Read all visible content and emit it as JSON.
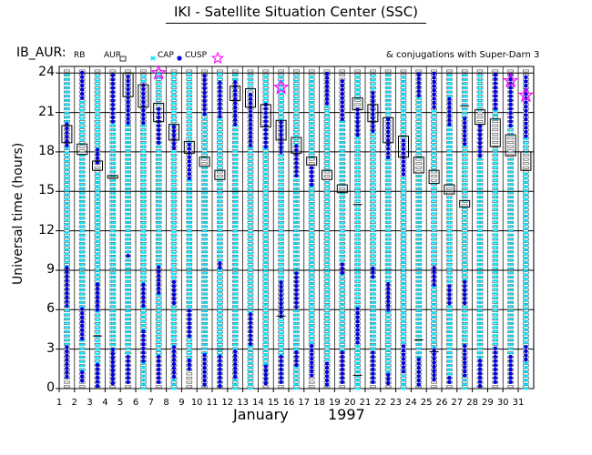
{
  "title": "IKI - Satellite Situation Center (SSC)",
  "panel_label": "IB_AUR:",
  "legend": [
    {
      "label": "RB",
      "marker": "none",
      "color": "#000000"
    },
    {
      "label": "AUR",
      "marker": "open-square",
      "color": "#000000"
    },
    {
      "label": "CAP",
      "marker": "asterisk",
      "color": "#00e5ff"
    },
    {
      "label": "CUSP",
      "marker": "filled-circle",
      "color": "#0000dd"
    },
    {
      "label": "",
      "marker": "open-star",
      "color": "#ff00ff"
    }
  ],
  "conjugation_note": "& conjugations with Super-Darn 3",
  "chart_data": {
    "type": "scatter",
    "title": "IKI - Satellite Situation Center (SSC)",
    "ylabel": "Universal time (hours)",
    "xlabel_month": "January",
    "xlabel_year": "1997",
    "ylim": [
      0,
      24.5
    ],
    "yticks": [
      0,
      3,
      6,
      9,
      12,
      15,
      18,
      21,
      24
    ],
    "xticks": [
      1,
      2,
      3,
      4,
      5,
      6,
      7,
      8,
      9,
      10,
      11,
      12,
      13,
      14,
      15,
      16,
      17,
      18,
      19,
      20,
      21,
      22,
      23,
      24,
      25,
      26,
      27,
      28,
      29,
      30,
      31
    ],
    "colors": {
      "AUR": "#404040",
      "CAP": "#00e5ff",
      "CUSP": "#0000dd",
      "conjugation": "#ff00ff"
    },
    "days": [
      2,
      3,
      4,
      5,
      6,
      7,
      8,
      9,
      10,
      11,
      12,
      13,
      14,
      15,
      16,
      17,
      18,
      19,
      20,
      21,
      22,
      23,
      24,
      25,
      26,
      27,
      28,
      29,
      30,
      31,
      32
    ],
    "rb_boxes": [
      {
        "day": 2,
        "start": 18.7,
        "end": 20.0
      },
      {
        "day": 3,
        "start": 17.8,
        "end": 18.6
      },
      {
        "day": 4,
        "start": 16.6,
        "end": 17.3
      },
      {
        "day": 5,
        "start": 16.0,
        "end": 16.2
      },
      {
        "day": 6,
        "start": 22.2,
        "end": 24.0
      },
      {
        "day": 7,
        "start": 21.4,
        "end": 23.1
      },
      {
        "day": 8,
        "start": 20.3,
        "end": 21.7
      },
      {
        "day": 9,
        "start": 18.9,
        "end": 20.1
      },
      {
        "day": 10,
        "start": 17.9,
        "end": 18.8
      },
      {
        "day": 11,
        "start": 16.9,
        "end": 17.6
      },
      {
        "day": 12,
        "start": 15.9,
        "end": 16.6
      },
      {
        "day": 13,
        "start": 21.9,
        "end": 23.0
      },
      {
        "day": 14,
        "start": 21.4,
        "end": 22.8
      },
      {
        "day": 15,
        "start": 19.9,
        "end": 21.6
      },
      {
        "day": 16,
        "start": 18.9,
        "end": 20.4
      },
      {
        "day": 17,
        "start": 17.9,
        "end": 19.1
      },
      {
        "day": 18,
        "start": 17.0,
        "end": 17.6
      },
      {
        "day": 19,
        "start": 15.9,
        "end": 16.6
      },
      {
        "day": 20,
        "start": 14.9,
        "end": 15.5
      },
      {
        "day": 21,
        "start": 21.2,
        "end": 22.1
      },
      {
        "day": 22,
        "start": 20.3,
        "end": 21.6
      },
      {
        "day": 23,
        "start": 18.7,
        "end": 20.6
      },
      {
        "day": 24,
        "start": 17.6,
        "end": 19.2
      },
      {
        "day": 25,
        "start": 16.4,
        "end": 17.6
      },
      {
        "day": 26,
        "start": 15.6,
        "end": 16.6
      },
      {
        "day": 27,
        "start": 14.8,
        "end": 15.5
      },
      {
        "day": 28,
        "start": 13.8,
        "end": 14.3
      },
      {
        "day": 29,
        "start": 20.1,
        "end": 21.2
      },
      {
        "day": 30,
        "start": 18.4,
        "end": 20.5
      },
      {
        "day": 31,
        "start": 17.7,
        "end": 19.3
      },
      {
        "day": 32,
        "start": 16.6,
        "end": 18.0
      }
    ],
    "rb_ticks": [
      {
        "day": 4,
        "t": 4.0
      },
      {
        "day": 12,
        "t": 3.0
      },
      {
        "day": 13,
        "t": 15.0
      },
      {
        "day": 16,
        "t": 5.5
      },
      {
        "day": 21,
        "t": 1.0
      },
      {
        "day": 21,
        "t": 14.0
      },
      {
        "day": 25,
        "t": 3.7
      },
      {
        "day": 26,
        "t": 2.8
      },
      {
        "day": 28,
        "t": 21.5
      }
    ],
    "conjugations": [
      {
        "day": 8,
        "t": 24.0
      },
      {
        "day": 16,
        "t": 22.9
      },
      {
        "day": 31,
        "t": 23.4
      },
      {
        "day": 32,
        "t": 22.3
      }
    ],
    "cusp_segments": [
      {
        "day": 2,
        "ranges": [
          [
            0.9,
            3.4
          ],
          [
            6.3,
            9.3
          ],
          [
            18.5,
            20.3
          ]
        ]
      },
      {
        "day": 3,
        "ranges": [
          [
            0.6,
            1.4
          ],
          [
            3.8,
            6.2
          ],
          [
            22.1,
            24.1
          ]
        ]
      },
      {
        "day": 4,
        "ranges": [
          [
            0.2,
            2.0
          ],
          [
            6.0,
            8.0
          ],
          [
            17.2,
            18.3
          ]
        ]
      },
      {
        "day": 5,
        "ranges": [
          [
            0.4,
            3.0
          ],
          [
            20.3,
            23.9
          ]
        ]
      },
      {
        "day": 6,
        "ranges": [
          [
            0.5,
            2.7
          ],
          [
            10.1,
            10.4
          ],
          [
            20.2,
            24.0
          ]
        ]
      },
      {
        "day": 7,
        "ranges": [
          [
            2.1,
            4.5
          ],
          [
            6.3,
            8.1
          ],
          [
            20.2,
            23.4
          ]
        ]
      },
      {
        "day": 8,
        "ranges": [
          [
            0.5,
            2.6
          ],
          [
            7.3,
            9.4
          ],
          [
            18.7,
            21.4
          ]
        ]
      },
      {
        "day": 9,
        "ranges": [
          [
            0.9,
            3.3
          ],
          [
            6.5,
            8.4
          ],
          [
            18.3,
            20.0
          ]
        ]
      },
      {
        "day": 10,
        "ranges": [
          [
            1.5,
            2.3
          ],
          [
            4.0,
            6.2
          ],
          [
            16.0,
            18.6
          ]
        ]
      },
      {
        "day": 11,
        "ranges": [
          [
            0.3,
            2.7
          ],
          [
            20.9,
            24.0
          ]
        ]
      },
      {
        "day": 12,
        "ranges": [
          [
            0.2,
            2.6
          ],
          [
            9.2,
            9.8
          ],
          [
            20.7,
            23.3
          ]
        ]
      },
      {
        "day": 13,
        "ranges": [
          [
            0.9,
            3.0
          ],
          [
            20.1,
            23.5
          ]
        ]
      },
      {
        "day": 14,
        "ranges": [
          [
            3.4,
            5.8
          ],
          [
            18.5,
            22.6
          ]
        ]
      },
      {
        "day": 15,
        "ranges": [
          [
            0.4,
            1.9
          ],
          [
            18.4,
            21.8
          ]
        ]
      },
      {
        "day": 16,
        "ranges": [
          [
            0.5,
            2.6
          ],
          [
            5.5,
            8.1
          ],
          [
            18.0,
            20.5
          ]
        ]
      },
      {
        "day": 17,
        "ranges": [
          [
            1.8,
            3.0
          ],
          [
            6.2,
            8.8
          ],
          [
            16.2,
            18.6
          ]
        ]
      },
      {
        "day": 18,
        "ranges": [
          [
            1.0,
            3.5
          ],
          [
            15.5,
            17.0
          ]
        ]
      },
      {
        "day": 19,
        "ranges": [
          [
            0.3,
            2.2
          ],
          [
            21.7,
            24.0
          ]
        ]
      },
      {
        "day": 20,
        "ranges": [
          [
            0.5,
            2.9
          ],
          [
            8.8,
            9.7
          ],
          [
            20.5,
            23.7
          ]
        ]
      },
      {
        "day": 21,
        "ranges": [
          [
            3.5,
            6.3
          ],
          [
            19.3,
            21.5
          ]
        ]
      },
      {
        "day": 22,
        "ranges": [
          [
            0.5,
            3.0
          ],
          [
            8.5,
            9.2
          ],
          [
            19.6,
            22.8
          ]
        ]
      },
      {
        "day": 23,
        "ranges": [
          [
            0.4,
            1.3
          ],
          [
            6.0,
            8.2
          ],
          [
            17.6,
            20.6
          ]
        ]
      },
      {
        "day": 24,
        "ranges": [
          [
            1.3,
            3.5
          ],
          [
            16.3,
            18.9
          ]
        ]
      },
      {
        "day": 25,
        "ranges": [
          [
            0.3,
            2.4
          ],
          [
            22.3,
            24.0
          ]
        ]
      },
      {
        "day": 26,
        "ranges": [
          [
            0.7,
            3.2
          ],
          [
            7.9,
            9.5
          ],
          [
            21.4,
            24.1
          ]
        ]
      },
      {
        "day": 27,
        "ranges": [
          [
            0.5,
            1.1
          ],
          [
            6.5,
            8.1
          ],
          [
            20.1,
            22.2
          ]
        ]
      },
      {
        "day": 28,
        "ranges": [
          [
            1.0,
            3.3
          ],
          [
            6.5,
            8.3
          ],
          [
            18.6,
            20.6
          ]
        ]
      },
      {
        "day": 29,
        "ranges": [
          [
            0.2,
            2.4
          ],
          [
            17.7,
            20.0
          ]
        ]
      },
      {
        "day": 30,
        "ranges": [
          [
            0.5,
            3.1
          ],
          [
            21.3,
            24.0
          ]
        ]
      },
      {
        "day": 31,
        "ranges": [
          [
            0.5,
            2.7
          ],
          [
            20.0,
            24.0
          ]
        ]
      },
      {
        "day": 32,
        "ranges": [
          [
            2.2,
            3.2
          ],
          [
            19.2,
            24.0
          ]
        ]
      }
    ],
    "cap_segments": [
      {
        "day": 2,
        "ranges": [
          [
            3.4,
            6.3
          ],
          [
            9.3,
            18.5
          ],
          [
            20.3,
            24.0
          ]
        ]
      },
      {
        "day": 3,
        "ranges": [
          [
            1.4,
            3.8
          ],
          [
            6.2,
            17.8
          ],
          [
            18.6,
            22.1
          ]
        ]
      },
      {
        "day": 4,
        "ranges": [
          [
            2.0,
            6.0
          ],
          [
            8.0,
            16.6
          ],
          [
            18.3,
            24.0
          ]
        ]
      },
      {
        "day": 5,
        "ranges": [
          [
            3.0,
            16.0
          ],
          [
            16.2,
            20.3
          ]
        ]
      },
      {
        "day": 6,
        "ranges": [
          [
            2.7,
            10.1
          ],
          [
            10.4,
            20.2
          ]
        ]
      },
      {
        "day": 7,
        "ranges": [
          [
            0.0,
            2.1
          ],
          [
            4.5,
            6.3
          ],
          [
            8.1,
            20.2
          ],
          [
            23.4,
            24.0
          ]
        ]
      },
      {
        "day": 8,
        "ranges": [
          [
            2.6,
            7.3
          ],
          [
            9.4,
            18.7
          ],
          [
            21.7,
            24.0
          ]
        ]
      },
      {
        "day": 9,
        "ranges": [
          [
            0.0,
            0.9
          ],
          [
            3.3,
            6.5
          ],
          [
            8.4,
            18.3
          ],
          [
            20.1,
            24.0
          ]
        ]
      },
      {
        "day": 10,
        "ranges": [
          [
            2.3,
            4.0
          ],
          [
            6.2,
            16.0
          ],
          [
            18.8,
            24.0
          ]
        ]
      },
      {
        "day": 11,
        "ranges": [
          [
            2.7,
            16.9
          ],
          [
            17.6,
            20.9
          ]
        ]
      },
      {
        "day": 12,
        "ranges": [
          [
            2.6,
            9.2
          ],
          [
            9.8,
            15.9
          ],
          [
            16.6,
            20.7
          ],
          [
            23.3,
            24.0
          ]
        ]
      },
      {
        "day": 13,
        "ranges": [
          [
            0.0,
            0.9
          ],
          [
            3.0,
            20.1
          ],
          [
            23.5,
            24.0
          ]
        ]
      },
      {
        "day": 14,
        "ranges": [
          [
            0.0,
            3.4
          ],
          [
            5.8,
            18.5
          ],
          [
            22.8,
            24.0
          ]
        ]
      },
      {
        "day": 15,
        "ranges": [
          [
            1.9,
            18.4
          ],
          [
            21.8,
            24.0
          ]
        ]
      },
      {
        "day": 16,
        "ranges": [
          [
            2.6,
            5.5
          ],
          [
            8.1,
            18.0
          ],
          [
            20.5,
            24.0
          ]
        ]
      },
      {
        "day": 17,
        "ranges": [
          [
            0.0,
            1.8
          ],
          [
            3.0,
            6.2
          ],
          [
            8.8,
            16.2
          ],
          [
            18.6,
            24.0
          ]
        ]
      },
      {
        "day": 18,
        "ranges": [
          [
            3.5,
            15.5
          ],
          [
            17.6,
            24.0
          ]
        ]
      },
      {
        "day": 19,
        "ranges": [
          [
            2.2,
            15.9
          ],
          [
            16.6,
            21.7
          ]
        ]
      },
      {
        "day": 20,
        "ranges": [
          [
            2.9,
            8.8
          ],
          [
            9.7,
            14.9
          ],
          [
            15.5,
            20.5
          ]
        ]
      },
      {
        "day": 21,
        "ranges": [
          [
            0.0,
            3.5
          ],
          [
            6.3,
            19.3
          ],
          [
            22.1,
            24.0
          ]
        ]
      },
      {
        "day": 22,
        "ranges": [
          [
            3.0,
            8.5
          ],
          [
            9.2,
            19.6
          ],
          [
            22.8,
            24.0
          ]
        ]
      },
      {
        "day": 23,
        "ranges": [
          [
            1.3,
            6.0
          ],
          [
            8.2,
            17.6
          ],
          [
            20.6,
            24.0
          ]
        ]
      },
      {
        "day": 24,
        "ranges": [
          [
            0.0,
            1.3
          ],
          [
            3.5,
            16.3
          ],
          [
            19.2,
            24.0
          ]
        ]
      },
      {
        "day": 25,
        "ranges": [
          [
            2.4,
            16.4
          ],
          [
            17.6,
            22.3
          ]
        ]
      },
      {
        "day": 26,
        "ranges": [
          [
            3.2,
            7.9
          ],
          [
            9.5,
            15.6
          ],
          [
            16.6,
            21.4
          ]
        ]
      },
      {
        "day": 27,
        "ranges": [
          [
            1.1,
            6.5
          ],
          [
            8.1,
            14.8
          ],
          [
            15.5,
            20.1
          ],
          [
            22.2,
            24.0
          ]
        ]
      },
      {
        "day": 28,
        "ranges": [
          [
            0.0,
            1.0
          ],
          [
            3.3,
            6.5
          ],
          [
            8.3,
            13.8
          ],
          [
            14.3,
            18.6
          ],
          [
            20.6,
            24.0
          ]
        ]
      },
      {
        "day": 29,
        "ranges": [
          [
            2.4,
            17.7
          ],
          [
            21.2,
            24.0
          ]
        ]
      },
      {
        "day": 30,
        "ranges": [
          [
            3.1,
            18.4
          ],
          [
            20.5,
            21.3
          ]
        ]
      },
      {
        "day": 31,
        "ranges": [
          [
            2.7,
            17.7
          ],
          [
            19.3,
            20.0
          ]
        ]
      },
      {
        "day": 32,
        "ranges": [
          [
            0.0,
            2.2
          ],
          [
            3.2,
            16.6
          ],
          [
            18.0,
            19.2
          ]
        ]
      }
    ]
  }
}
